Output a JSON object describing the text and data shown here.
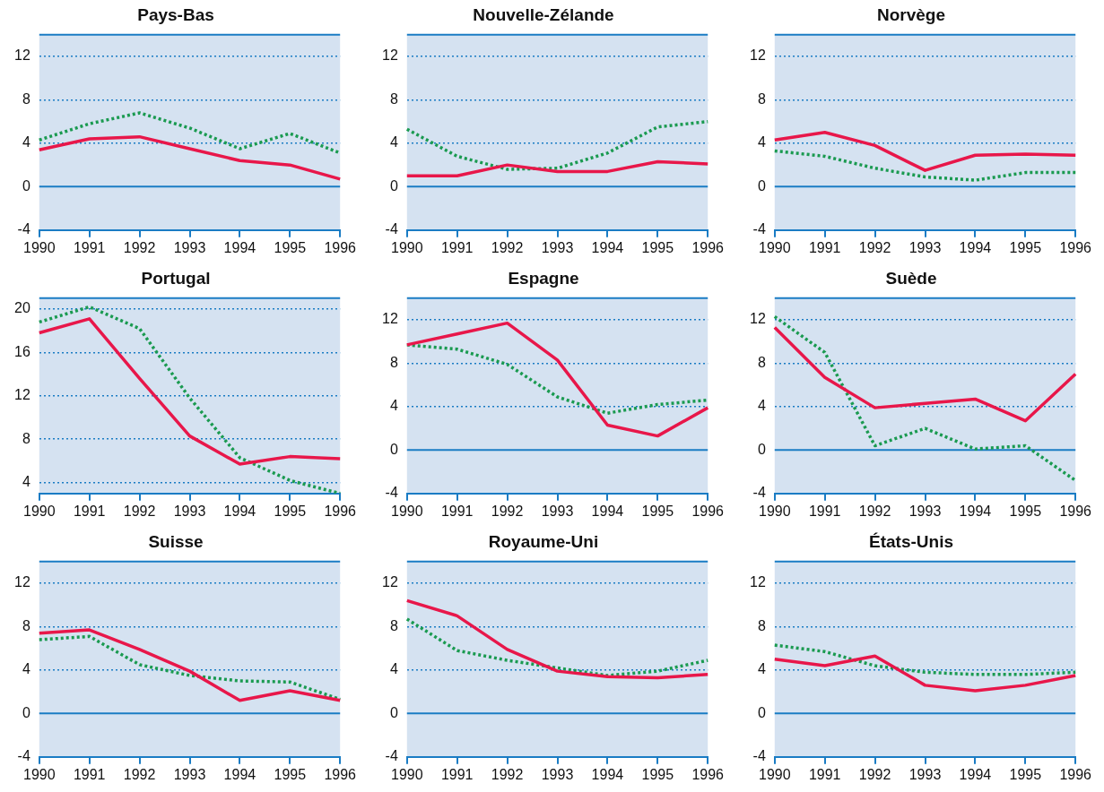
{
  "chart_data": [
    {
      "type": "line",
      "title": "Pays-Bas",
      "categories": [
        "1990",
        "1991",
        "1992",
        "1993",
        "1994",
        "1995",
        "1996"
      ],
      "ylim": [
        -4,
        14
      ],
      "yticks": [
        -4,
        0,
        4,
        8,
        12
      ],
      "grid": "y",
      "marker": "none",
      "ref_lines": [
        {
          "axis": "y",
          "value": 0
        }
      ],
      "series": [
        {
          "color": "#e8174a",
          "line_style": "solid",
          "values": [
            3.4,
            4.4,
            4.6,
            3.5,
            2.4,
            2.0,
            0.7
          ]
        },
        {
          "color": "#1a9a50",
          "line_style": "dotted",
          "values": [
            4.3,
            5.8,
            6.8,
            5.4,
            3.5,
            4.9,
            3.1
          ]
        }
      ]
    },
    {
      "type": "line",
      "title": "Nouvelle-Zélande",
      "categories": [
        "1990",
        "1991",
        "1992",
        "1993",
        "1994",
        "1995",
        "1996"
      ],
      "ylim": [
        -4,
        14
      ],
      "yticks": [
        -4,
        0,
        4,
        8,
        12
      ],
      "grid": "y",
      "marker": "none",
      "ref_lines": [
        {
          "axis": "y",
          "value": 0
        }
      ],
      "series": [
        {
          "color": "#e8174a",
          "line_style": "solid",
          "values": [
            1.0,
            1.0,
            2.0,
            1.4,
            1.4,
            2.3,
            2.1
          ]
        },
        {
          "color": "#1a9a50",
          "line_style": "dotted",
          "values": [
            5.3,
            2.8,
            1.6,
            1.7,
            3.1,
            5.5,
            6.0
          ]
        }
      ]
    },
    {
      "type": "line",
      "title": "Norvège",
      "categories": [
        "1990",
        "1991",
        "1992",
        "1993",
        "1994",
        "1995",
        "1996"
      ],
      "ylim": [
        -4,
        14
      ],
      "yticks": [
        -4,
        0,
        4,
        8,
        12
      ],
      "grid": "y",
      "marker": "none",
      "ref_lines": [
        {
          "axis": "y",
          "value": 0
        }
      ],
      "series": [
        {
          "color": "#e8174a",
          "line_style": "solid",
          "values": [
            4.3,
            5.0,
            3.8,
            1.5,
            2.9,
            3.0,
            2.9
          ]
        },
        {
          "color": "#1a9a50",
          "line_style": "dotted",
          "values": [
            3.3,
            2.8,
            1.7,
            0.9,
            0.6,
            1.3,
            1.3
          ]
        }
      ]
    },
    {
      "type": "line",
      "title": "Portugal",
      "categories": [
        "1990",
        "1991",
        "1992",
        "1993",
        "1994",
        "1995",
        "1996"
      ],
      "ylim": [
        3,
        21
      ],
      "yticks": [
        4,
        8,
        12,
        16,
        20
      ],
      "grid": "y",
      "marker": "none",
      "series": [
        {
          "color": "#e8174a",
          "line_style": "solid",
          "values": [
            17.8,
            19.1,
            13.6,
            8.3,
            5.7,
            6.4,
            6.2
          ]
        },
        {
          "color": "#1a9a50",
          "line_style": "dotted",
          "values": [
            18.8,
            20.2,
            18.2,
            11.8,
            6.3,
            4.2,
            3.0
          ]
        }
      ]
    },
    {
      "type": "line",
      "title": "Espagne",
      "categories": [
        "1990",
        "1991",
        "1992",
        "1993",
        "1994",
        "1995",
        "1996"
      ],
      "ylim": [
        -4,
        14
      ],
      "yticks": [
        -4,
        0,
        4,
        8,
        12
      ],
      "grid": "y",
      "marker": "none",
      "ref_lines": [
        {
          "axis": "y",
          "value": 0
        }
      ],
      "series": [
        {
          "color": "#e8174a",
          "line_style": "solid",
          "values": [
            9.7,
            10.7,
            11.7,
            8.3,
            2.3,
            1.3,
            3.9
          ]
        },
        {
          "color": "#1a9a50",
          "line_style": "dotted",
          "values": [
            9.7,
            9.3,
            7.9,
            4.9,
            3.4,
            4.2,
            4.6
          ]
        }
      ]
    },
    {
      "type": "line",
      "title": "Suède",
      "categories": [
        "1990",
        "1991",
        "1992",
        "1993",
        "1994",
        "1995",
        "1996"
      ],
      "ylim": [
        -4,
        14
      ],
      "yticks": [
        -4,
        0,
        4,
        8,
        12
      ],
      "grid": "y",
      "marker": "none",
      "ref_lines": [
        {
          "axis": "y",
          "value": 0
        }
      ],
      "series": [
        {
          "color": "#e8174a",
          "line_style": "solid",
          "values": [
            11.3,
            6.7,
            3.9,
            4.3,
            4.7,
            2.7,
            7.0
          ]
        },
        {
          "color": "#1a9a50",
          "line_style": "dotted",
          "values": [
            12.3,
            9.0,
            0.4,
            2.0,
            0.1,
            0.4,
            -2.8
          ]
        }
      ]
    },
    {
      "type": "line",
      "title": "Suisse",
      "categories": [
        "1990",
        "1991",
        "1992",
        "1993",
        "1994",
        "1995",
        "1996"
      ],
      "ylim": [
        -4,
        14
      ],
      "yticks": [
        -4,
        0,
        4,
        8,
        12
      ],
      "grid": "y",
      "marker": "none",
      "ref_lines": [
        {
          "axis": "y",
          "value": 0
        }
      ],
      "series": [
        {
          "color": "#e8174a",
          "line_style": "solid",
          "values": [
            7.4,
            7.7,
            5.9,
            3.9,
            1.2,
            2.1,
            1.2
          ]
        },
        {
          "color": "#1a9a50",
          "line_style": "dotted",
          "values": [
            6.8,
            7.1,
            4.5,
            3.5,
            3.0,
            2.9,
            1.3
          ]
        }
      ]
    },
    {
      "type": "line",
      "title": "Royaume-Uni",
      "categories": [
        "1990",
        "1991",
        "1992",
        "1993",
        "1994",
        "1995",
        "1996"
      ],
      "ylim": [
        -4,
        14
      ],
      "yticks": [
        -4,
        0,
        4,
        8,
        12
      ],
      "grid": "y",
      "marker": "none",
      "ref_lines": [
        {
          "axis": "y",
          "value": 0
        }
      ],
      "series": [
        {
          "color": "#e8174a",
          "line_style": "solid",
          "values": [
            10.4,
            9.0,
            5.9,
            3.9,
            3.4,
            3.3,
            3.6
          ]
        },
        {
          "color": "#1a9a50",
          "line_style": "dotted",
          "values": [
            8.7,
            5.8,
            4.9,
            4.2,
            3.5,
            3.9,
            4.9
          ]
        }
      ]
    },
    {
      "type": "line",
      "title": "États-Unis",
      "categories": [
        "1990",
        "1991",
        "1992",
        "1993",
        "1994",
        "1995",
        "1996"
      ],
      "ylim": [
        -4,
        14
      ],
      "yticks": [
        -4,
        0,
        4,
        8,
        12
      ],
      "grid": "y",
      "marker": "none",
      "ref_lines": [
        {
          "axis": "y",
          "value": 0
        }
      ],
      "series": [
        {
          "color": "#e8174a",
          "line_style": "solid",
          "values": [
            5.0,
            4.4,
            5.3,
            2.6,
            2.1,
            2.6,
            3.5
          ]
        },
        {
          "color": "#1a9a50",
          "line_style": "dotted",
          "values": [
            6.3,
            5.7,
            4.4,
            3.8,
            3.6,
            3.6,
            3.8
          ]
        }
      ]
    }
  ]
}
